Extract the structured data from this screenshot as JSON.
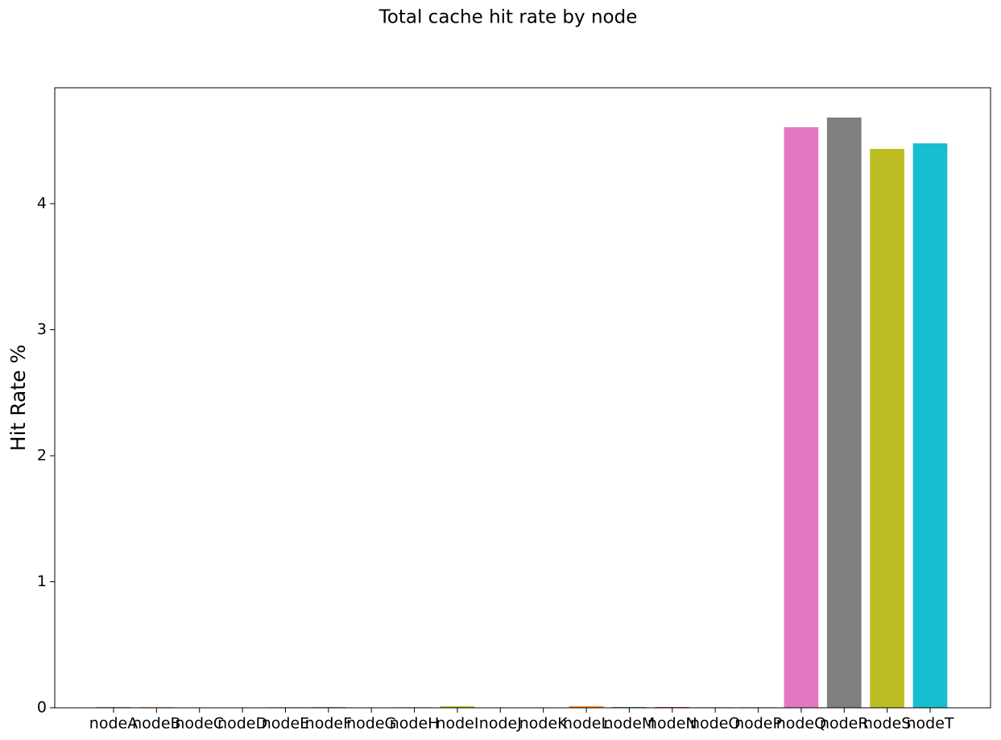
{
  "chart_data": {
    "type": "bar",
    "title": "Total cache hit rate by node",
    "ylabel": "Hit Rate %",
    "categories": [
      "nodeA",
      "nodeB",
      "nodeC",
      "nodeD",
      "nodeE",
      "nodeF",
      "nodeG",
      "nodeH",
      "nodeI",
      "nodeJ",
      "nodeK",
      "nodeL",
      "nodeM",
      "nodeN",
      "nodeO",
      "nodeP",
      "nodeQ",
      "nodeR",
      "nodeS",
      "nodeT"
    ],
    "values": [
      0.005,
      0.005,
      0,
      0,
      0.004,
      0.005,
      0,
      0.004,
      0.012,
      0,
      0,
      0.012,
      0.006,
      0.006,
      0.004,
      0.004,
      4.607,
      4.684,
      4.435,
      4.479
    ],
    "colors": [
      "#1f77b4",
      "#ff7f0e",
      "#2ca02c",
      "#d62728",
      "#9467bd",
      "#8c564b",
      "#e377c2",
      "#7f7f7f",
      "#bcbd22",
      "#17becf",
      "#1f77b4",
      "#ff7f0e",
      "#2ca02c",
      "#d62728",
      "#9467bd",
      "#8c564b",
      "#e377c2",
      "#7f7f7f",
      "#bcbd22",
      "#17becf"
    ],
    "ylim": [
      0,
      4.92
    ],
    "yticks": [
      0,
      1,
      2,
      3,
      4
    ],
    "grid": false
  }
}
